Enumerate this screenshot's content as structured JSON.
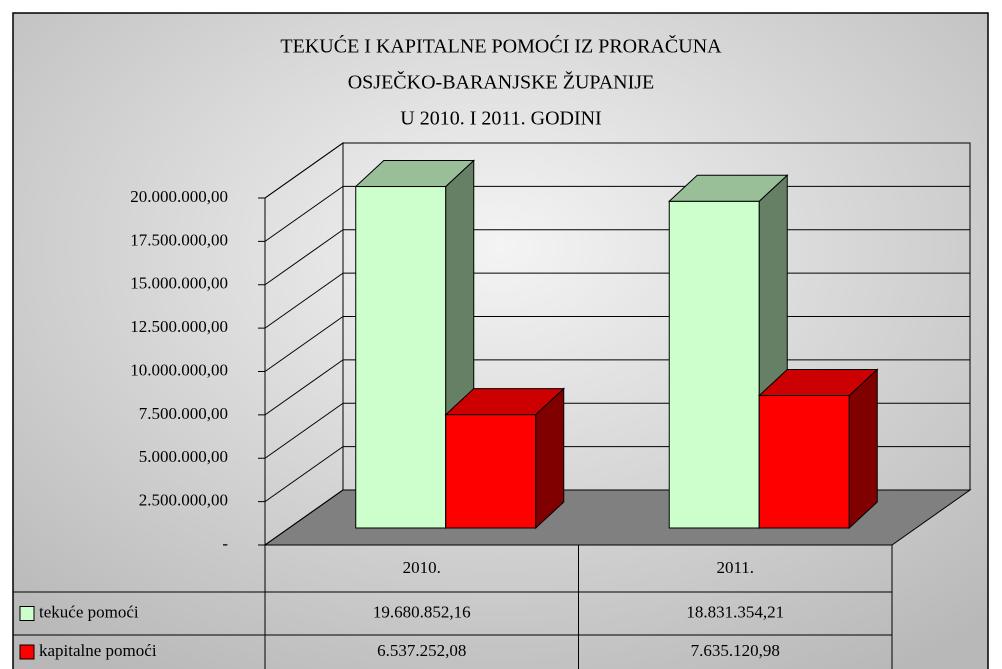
{
  "chart_data": {
    "type": "bar3d",
    "title": [
      "TEKUĆE I KAPITALNE POMOĆI IZ PRORAČUNA",
      "OSJEČKO-BARANJSKE ŽUPANIJE",
      "U 2010. I 2011. GODINI"
    ],
    "categories": [
      "2010.",
      "2011."
    ],
    "series": [
      {
        "name": "tekuće pomoći",
        "color": "#ccffcc",
        "values": [
          19680852.16,
          18831354.21
        ],
        "value_labels": [
          "19.680.852,16",
          "18.831.354,21"
        ]
      },
      {
        "name": "kapitalne pomoći",
        "color": "#ff0000",
        "values": [
          6537252.08,
          7635120.98
        ],
        "value_labels": [
          "6.537.252,08",
          "7.635.120,98"
        ]
      }
    ],
    "ylim": [
      0,
      20000000
    ],
    "yticks": [
      {
        "value": 0,
        "label": "-"
      },
      {
        "value": 2500000,
        "label": "2.500.000,00"
      },
      {
        "value": 5000000,
        "label": "5.000.000,00"
      },
      {
        "value": 7500000,
        "label": "7.500.000,00"
      },
      {
        "value": 10000000,
        "label": "10.000.000,00"
      },
      {
        "value": 12500000,
        "label": "12.500.000,00"
      },
      {
        "value": 15000000,
        "label": "15.000.000,00"
      },
      {
        "value": 17500000,
        "label": "17.500.000,00"
      },
      {
        "value": 20000000,
        "label": "20.000.000,00"
      }
    ],
    "grid": true,
    "data_table": true
  }
}
